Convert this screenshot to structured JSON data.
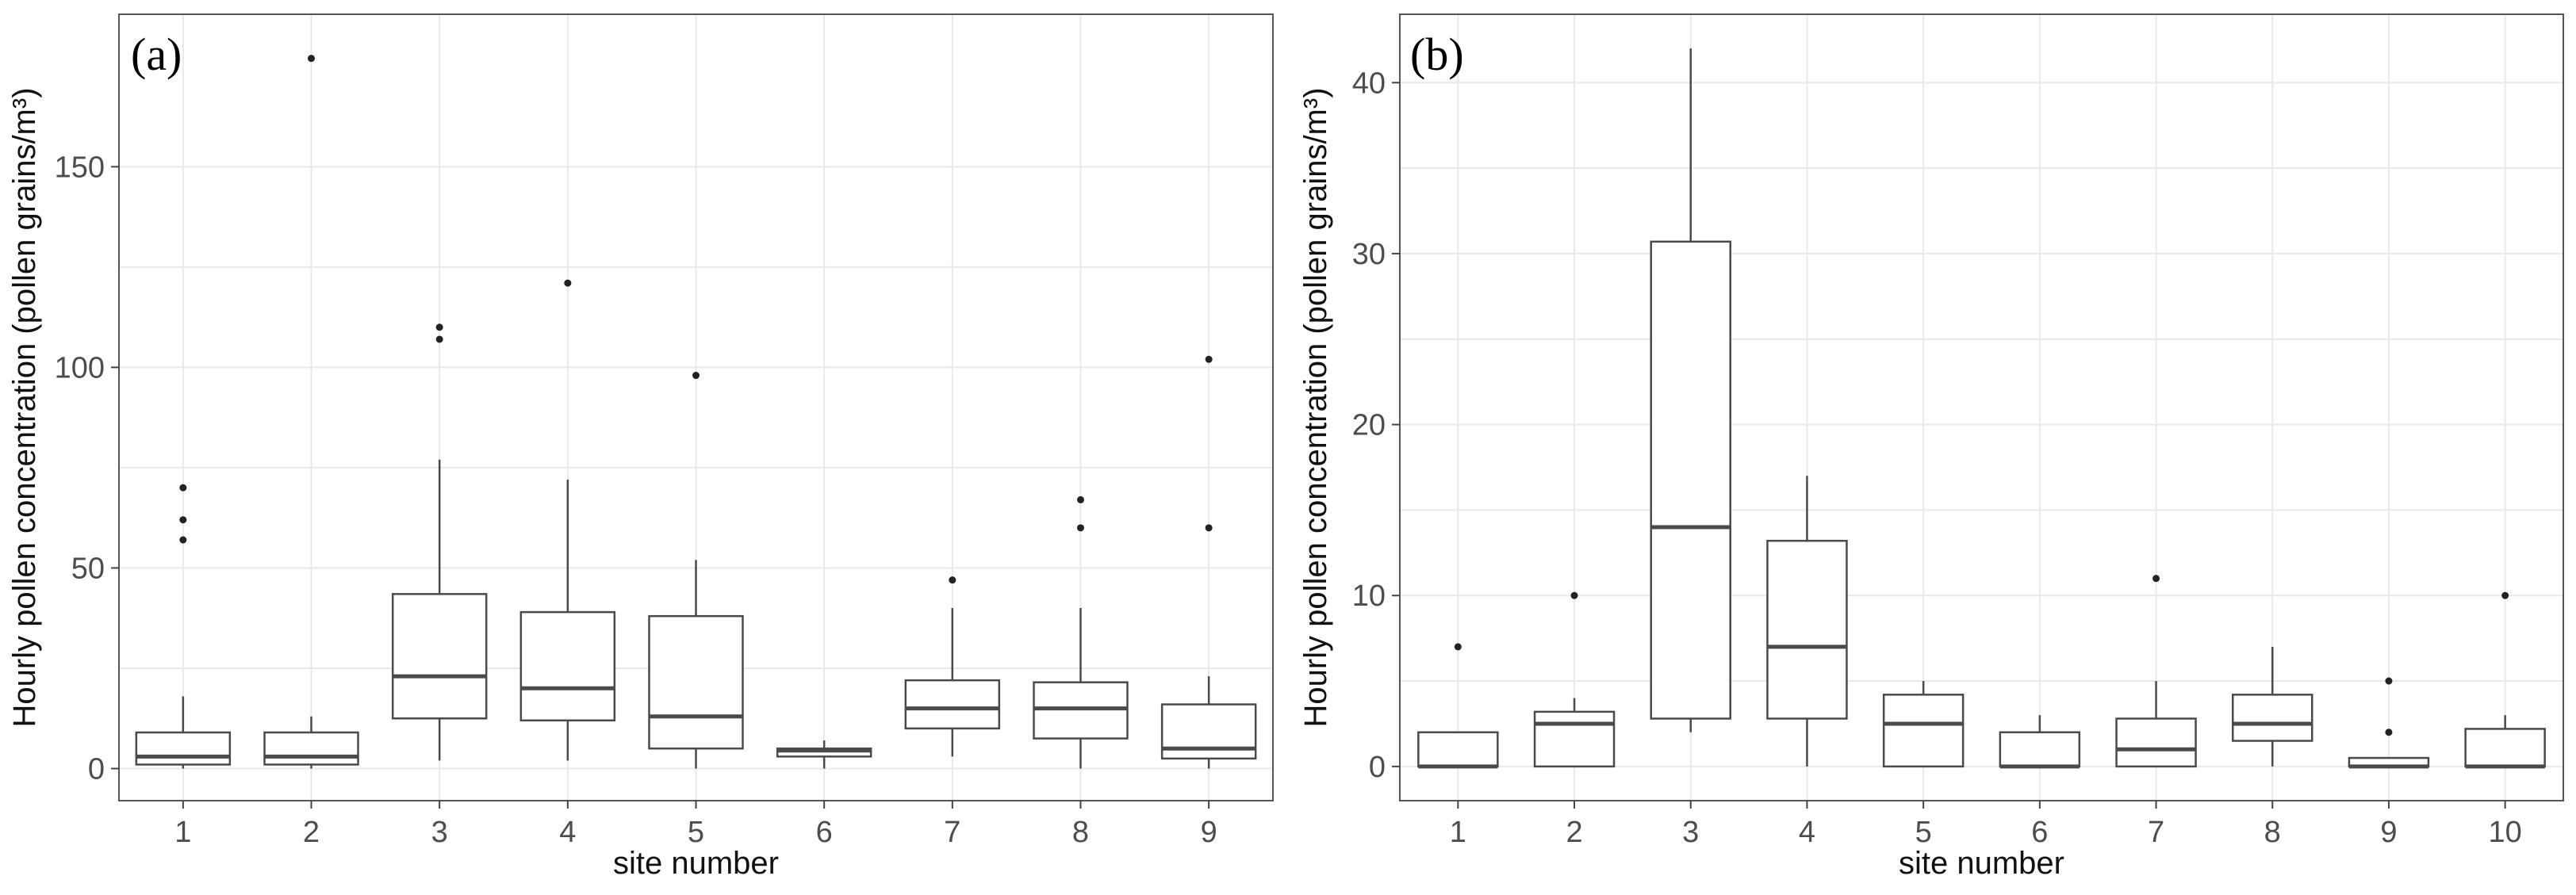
{
  "chart_data": [
    {
      "type": "box",
      "panel_label": "(a)",
      "xlabel": "site number",
      "ylabel": "Hourly pollen concentration (pollen grains/m³)",
      "categories": [
        "1",
        "2",
        "3",
        "4",
        "5",
        "6",
        "7",
        "8",
        "9"
      ],
      "ylim": [
        -8,
        188
      ],
      "yticks": [
        0,
        50,
        100,
        150
      ],
      "grid": true,
      "boxes": [
        {
          "category": "1",
          "whisker_low": 0,
          "q1": 1,
          "median": 3,
          "q3": 9,
          "whisker_high": 18,
          "outliers": [
            57,
            62,
            70
          ]
        },
        {
          "category": "2",
          "whisker_low": 0,
          "q1": 1,
          "median": 3,
          "q3": 9,
          "whisker_high": 13,
          "outliers": [
            177
          ]
        },
        {
          "category": "3",
          "whisker_low": 2,
          "q1": 12.5,
          "median": 23,
          "q3": 43.5,
          "whisker_high": 77,
          "outliers": [
            107,
            110
          ]
        },
        {
          "category": "4",
          "whisker_low": 2,
          "q1": 12,
          "median": 20,
          "q3": 39,
          "whisker_high": 72,
          "outliers": [
            121
          ]
        },
        {
          "category": "5",
          "whisker_low": 0,
          "q1": 5,
          "median": 13,
          "q3": 38,
          "whisker_high": 52,
          "outliers": [
            98
          ]
        },
        {
          "category": "6",
          "whisker_low": 0,
          "q1": 3,
          "median": 4.5,
          "q3": 5,
          "whisker_high": 7,
          "outliers": []
        },
        {
          "category": "7",
          "whisker_low": 3,
          "q1": 10,
          "median": 15,
          "q3": 22,
          "whisker_high": 40,
          "outliers": [
            47
          ]
        },
        {
          "category": "8",
          "whisker_low": 0,
          "q1": 7.5,
          "median": 15,
          "q3": 21.5,
          "whisker_high": 40,
          "outliers": [
            60,
            67
          ]
        },
        {
          "category": "9",
          "whisker_low": 0,
          "q1": 2.5,
          "median": 5,
          "q3": 16,
          "whisker_high": 23,
          "outliers": [
            60,
            102
          ]
        }
      ]
    },
    {
      "type": "box",
      "panel_label": "(b)",
      "xlabel": "site number",
      "ylabel": "Hourly pollen concentration (pollen grains/m³)",
      "categories": [
        "1",
        "2",
        "3",
        "4",
        "5",
        "6",
        "7",
        "8",
        "9",
        "10"
      ],
      "ylim": [
        -2,
        44
      ],
      "yticks": [
        0,
        10,
        20,
        30,
        40
      ],
      "grid": true,
      "boxes": [
        {
          "category": "1",
          "whisker_low": 0,
          "q1": 0,
          "median": 0,
          "q3": 2,
          "whisker_high": 2,
          "outliers": [
            7
          ]
        },
        {
          "category": "2",
          "whisker_low": 0,
          "q1": 0,
          "median": 2.5,
          "q3": 3.2,
          "whisker_high": 4,
          "outliers": [
            10
          ]
        },
        {
          "category": "3",
          "whisker_low": 2,
          "q1": 2.8,
          "median": 14,
          "q3": 30.7,
          "whisker_high": 42,
          "outliers": []
        },
        {
          "category": "4",
          "whisker_low": 0,
          "q1": 2.8,
          "median": 7,
          "q3": 13.2,
          "whisker_high": 17,
          "outliers": []
        },
        {
          "category": "5",
          "whisker_low": 0,
          "q1": 0,
          "median": 2.5,
          "q3": 4.2,
          "whisker_high": 5,
          "outliers": []
        },
        {
          "category": "6",
          "whisker_low": 0,
          "q1": 0,
          "median": 0,
          "q3": 2,
          "whisker_high": 3,
          "outliers": []
        },
        {
          "category": "7",
          "whisker_low": 0,
          "q1": 0,
          "median": 1,
          "q3": 2.8,
          "whisker_high": 5,
          "outliers": [
            11
          ]
        },
        {
          "category": "8",
          "whisker_low": 0,
          "q1": 1.5,
          "median": 2.5,
          "q3": 4.2,
          "whisker_high": 7,
          "outliers": []
        },
        {
          "category": "9",
          "whisker_low": 0,
          "q1": 0,
          "median": 0,
          "q3": 0.5,
          "whisker_high": 0.5,
          "outliers": [
            2,
            5
          ]
        },
        {
          "category": "10",
          "whisker_low": 0,
          "q1": 0,
          "median": 0,
          "q3": 2.2,
          "whisker_high": 3,
          "outliers": [
            10
          ]
        }
      ]
    }
  ]
}
